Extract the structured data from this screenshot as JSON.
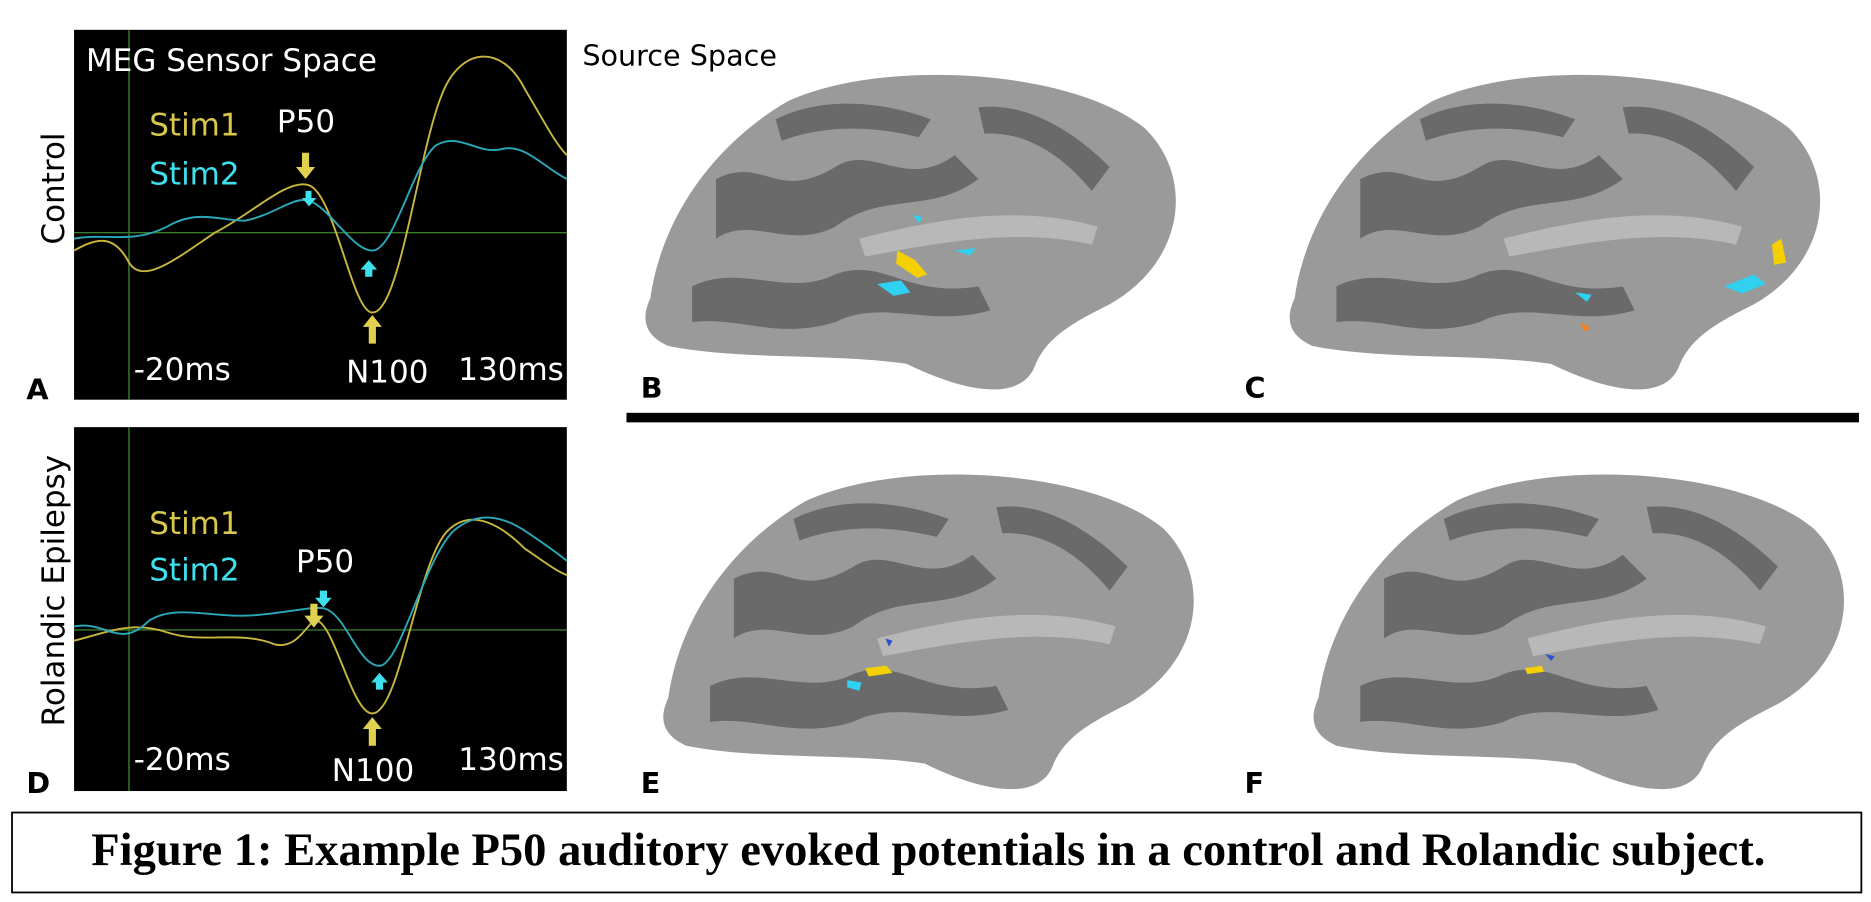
{
  "rows": [
    {
      "label": "Control",
      "panel": "A",
      "header": "MEG Sensor Space",
      "legend": [
        "Stim1",
        "Stim2"
      ],
      "peaks": [
        "P50",
        "N100"
      ],
      "time_labels": [
        "-20ms",
        "130ms"
      ],
      "brains": [
        "B",
        "C"
      ]
    },
    {
      "label": "Rolandic Epilepsy",
      "panel": "D",
      "legend": [
        "Stim1",
        "Stim2"
      ],
      "peaks": [
        "P50",
        "N100"
      ],
      "time_labels": [
        "-20ms",
        "130ms"
      ],
      "brains": [
        "E",
        "F"
      ]
    }
  ],
  "source_title": "Source Space",
  "caption": "Figure 1: Example P50 auditory evoked potentials in a control and Rolandic subject."
}
